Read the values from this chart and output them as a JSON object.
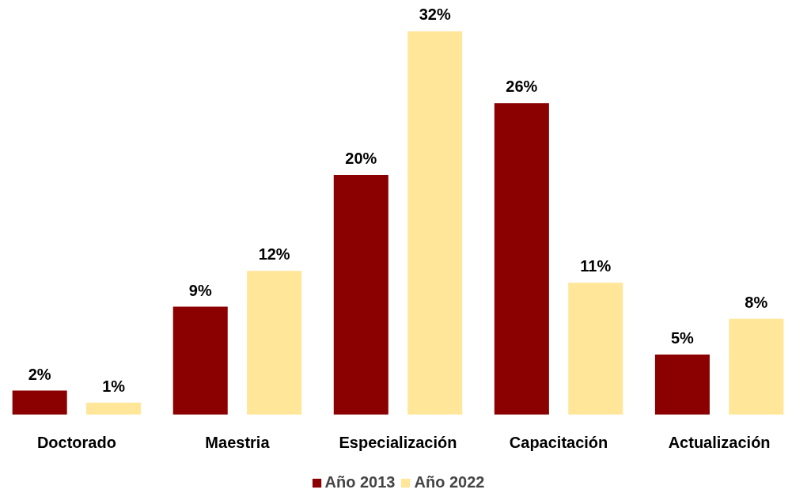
{
  "chart_data": {
    "type": "bar",
    "categories": [
      "Doctorado",
      "Maestria",
      "Especialización",
      "Capacitación",
      "Actualización"
    ],
    "series": [
      {
        "name": "Año 2013",
        "color": "#8b0000",
        "values": [
          2,
          9,
          20,
          26,
          5
        ],
        "value_labels": [
          "2%",
          "9%",
          "20%",
          "26%",
          "5%"
        ]
      },
      {
        "name": "Año 2022",
        "color": "#ffe699",
        "values": [
          1,
          12,
          32,
          11,
          8
        ],
        "value_labels": [
          "1%",
          "12%",
          "32%",
          "11%",
          "8%"
        ]
      }
    ],
    "legend": "bottom",
    "grid": false
  }
}
